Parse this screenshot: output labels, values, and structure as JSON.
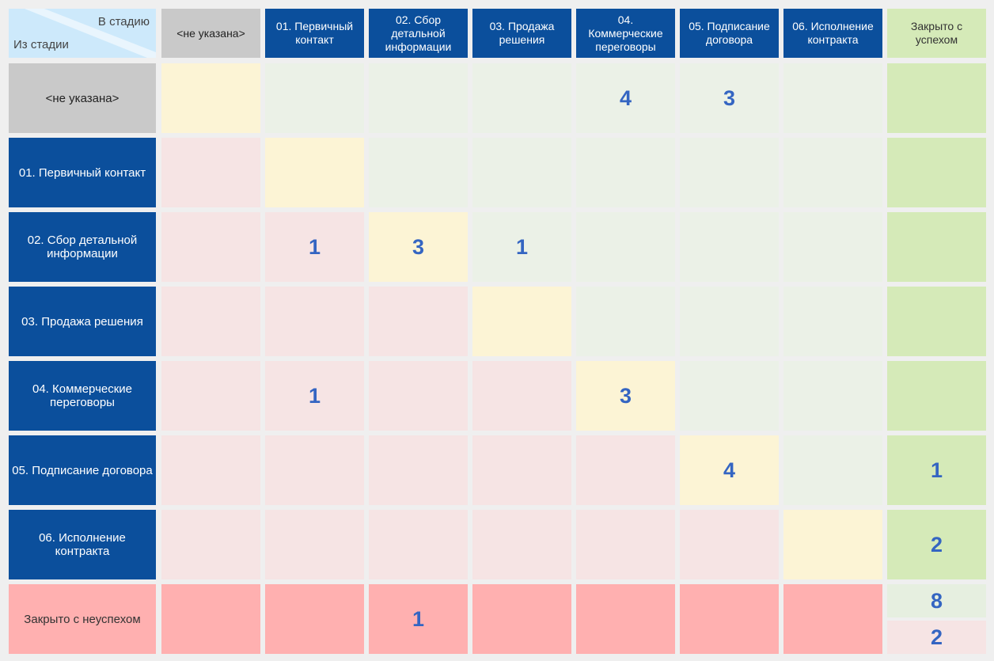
{
  "corner": {
    "to_label": "В стадию",
    "from_label": "Из стадии"
  },
  "columns": [
    {
      "label": "<не указана>"
    },
    {
      "label": "01. Первичный контакт"
    },
    {
      "label": "02. Сбор детальной информации"
    },
    {
      "label": "03. Продажа решения"
    },
    {
      "label": "04. Коммерческие переговоры"
    },
    {
      "label": "05. Подписание договора"
    },
    {
      "label": "06. Исполнение контракта"
    },
    {
      "label": "Закрыто с успехом"
    }
  ],
  "rows": [
    {
      "label": "<не указана>",
      "values": [
        "",
        "",
        "",
        "",
        "4",
        "3",
        "",
        ""
      ]
    },
    {
      "label": "01. Первичный контакт",
      "values": [
        "",
        "",
        "",
        "",
        "",
        "",
        "",
        ""
      ]
    },
    {
      "label": "02. Сбор детальной информации",
      "values": [
        "",
        "1",
        "3",
        "1",
        "",
        "",
        "",
        ""
      ]
    },
    {
      "label": "03. Продажа решения",
      "values": [
        "",
        "",
        "",
        "",
        "",
        "",
        "",
        ""
      ]
    },
    {
      "label": "04. Коммерческие переговоры",
      "values": [
        "",
        "1",
        "",
        "",
        "3",
        "",
        "",
        ""
      ]
    },
    {
      "label": "05. Подписание договора",
      "values": [
        "",
        "",
        "",
        "",
        "",
        "4",
        "",
        "1"
      ]
    },
    {
      "label": "06. Исполнение контракта",
      "values": [
        "",
        "",
        "",
        "",
        "",
        "",
        "",
        "2"
      ]
    },
    {
      "label": "Закрыто с неуспехом",
      "values": [
        "",
        "",
        "1",
        "",
        "",
        "",
        "",
        ""
      ]
    }
  ],
  "totals": {
    "top": "8",
    "bottom": "2"
  },
  "colors": {
    "header_blue": "#0b4f9c",
    "header_grey": "#c9c9c9",
    "header_green": "#d5eab8",
    "cell_green": "#ebf1e7",
    "cell_yellow": "#fcf4d5",
    "cell_pink": "#f6e4e4",
    "cell_red": "#ffb0b0",
    "value_text": "#3465c2"
  }
}
